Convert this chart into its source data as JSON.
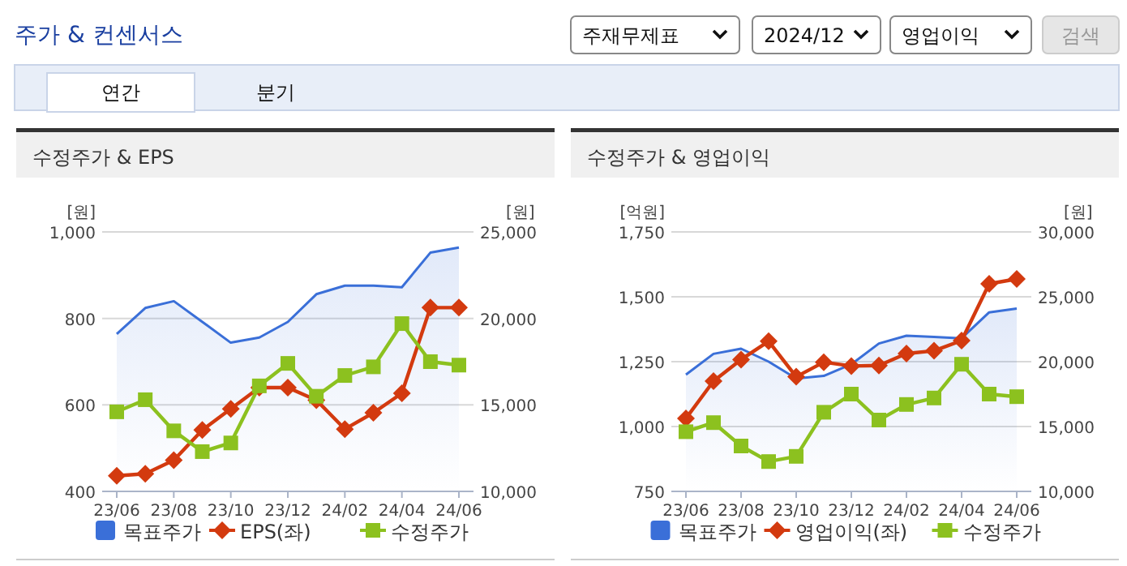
{
  "chart_data": [
    {
      "type": "other",
      "title": "주가 & 컨센서스",
      "annotations": [
        "주재무제표",
        "2024/12",
        "영업이익",
        "검색",
        "연간",
        "분기"
      ]
    },
    {
      "type": "line",
      "title": "수정주가 & EPS",
      "categories": [
        "23/06",
        null,
        "23/08",
        null,
        "23/10",
        null,
        "23/12",
        null,
        "24/02",
        null,
        "24/04",
        null,
        "24/06"
      ],
      "ylabel": "[원]",
      "y2label": "[원]",
      "ylim": [
        400,
        1000
      ],
      "yticks": [
        {
          "value": 400,
          "label": "400"
        },
        {
          "value": 600,
          "label": "600"
        },
        {
          "value": 800,
          "label": "800"
        },
        {
          "value": 1000,
          "label": "1,000"
        }
      ],
      "y2lim": [
        10000,
        25000
      ],
      "y2ticks": [
        {
          "value": 10000,
          "label": "10,000"
        },
        {
          "value": 15000,
          "label": "15,000"
        },
        {
          "value": 20000,
          "label": "20,000"
        },
        {
          "value": 25000,
          "label": "25,000"
        }
      ],
      "grid": "y",
      "legend": "bottom",
      "series": [
        {
          "name": "목표주가",
          "type": "area",
          "axis": "y2",
          "color": "#3a6fd8",
          "marker": "none",
          "values": [
            19100,
            20600,
            21000,
            19800,
            18600,
            18900,
            19800,
            21400,
            21900,
            21900,
            21800,
            23800,
            24100
          ]
        },
        {
          "name": "EPS(좌)",
          "type": "line",
          "axis": "y",
          "color": "#d33a0f",
          "marker": "diamond",
          "values": [
            436,
            441,
            472,
            542,
            591,
            640,
            640,
            611,
            544,
            582,
            627,
            825,
            825
          ]
        },
        {
          "name": "수정주가",
          "type": "line",
          "axis": "y2",
          "color": "#8cc11f",
          "marker": "square",
          "values": [
            14600,
            15300,
            13500,
            12300,
            12800,
            16100,
            17400,
            15500,
            16700,
            17200,
            19700,
            17500,
            17300
          ]
        }
      ]
    },
    {
      "type": "line",
      "title": "수정주가 & 영업이익",
      "categories": [
        "23/06",
        null,
        "23/08",
        null,
        "23/10",
        null,
        "23/12",
        null,
        "24/02",
        null,
        "24/04",
        null,
        "24/06"
      ],
      "ylabel": "[억원]",
      "y2label": "[원]",
      "ylim": [
        750,
        1750
      ],
      "yticks": [
        {
          "value": 750,
          "label": "750"
        },
        {
          "value": 1000,
          "label": "1,000"
        },
        {
          "value": 1250,
          "label": "1,250"
        },
        {
          "value": 1500,
          "label": "1,500"
        },
        {
          "value": 1750,
          "label": "1,750"
        }
      ],
      "y2lim": [
        10000,
        30000
      ],
      "y2ticks": [
        {
          "value": 10000,
          "label": "10,000"
        },
        {
          "value": 15000,
          "label": "15,000"
        },
        {
          "value": 20000,
          "label": "20,000"
        },
        {
          "value": 25000,
          "label": "25,000"
        },
        {
          "value": 30000,
          "label": "30,000"
        }
      ],
      "grid": "y",
      "legend": "bottom",
      "series": [
        {
          "name": "목표주가",
          "type": "area",
          "axis": "y2",
          "color": "#3a6fd8",
          "marker": "none",
          "values": [
            19000,
            20600,
            21000,
            20000,
            18700,
            18900,
            19800,
            21400,
            22000,
            21900,
            21800,
            23800,
            24100
          ]
        },
        {
          "name": "영업이익(좌)",
          "type": "line",
          "axis": "y",
          "color": "#d33a0f",
          "marker": "diamond",
          "values": [
            1031,
            1175,
            1258,
            1329,
            1192,
            1248,
            1233,
            1235,
            1281,
            1292,
            1331,
            1550,
            1569
          ]
        },
        {
          "name": "수정주가",
          "type": "line",
          "axis": "y2",
          "color": "#8cc11f",
          "marker": "square",
          "values": [
            14600,
            15300,
            13500,
            12300,
            12700,
            16100,
            17500,
            15500,
            16700,
            17200,
            19800,
            17500,
            17300
          ]
        }
      ]
    }
  ]
}
